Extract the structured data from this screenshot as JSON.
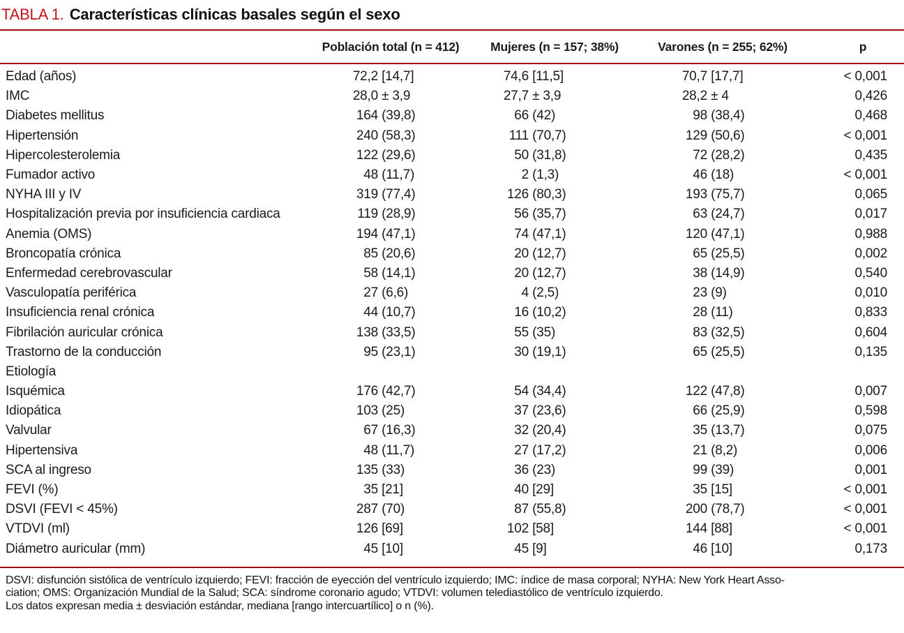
{
  "title": {
    "label": "TABLA 1.",
    "text": "Características clínicas basales según el sexo"
  },
  "chart_data": {
    "type": "table",
    "title": "TABLA 1. Características clínicas basales según el sexo",
    "columns": [
      "",
      "Población total (n = 412)",
      "Mujeres (n = 157; 38%)",
      "Varones (n = 255; 62%)",
      "p"
    ],
    "rows": [
      {
        "label": "Edad (años)",
        "total": "72,2 [14,7]",
        "mujeres": "74,6 [11,5]",
        "varones": "70,7 [17,7]",
        "p": "< 0,001"
      },
      {
        "label": "IMC",
        "total": "28,0 ± 3,9",
        "mujeres": "27,7 ± 3,9",
        "varones": "28,2 ± 4",
        "p": "0,426"
      },
      {
        "label": "Diabetes mellitus",
        "total": "164 (39,8)",
        "mujeres": "66 (42)",
        "varones": "98 (38,4)",
        "p": "0,468"
      },
      {
        "label": "Hipertensión",
        "total": "240 (58,3)",
        "mujeres": "111 (70,7)",
        "varones": "129 (50,6)",
        "p": "< 0,001"
      },
      {
        "label": "Hipercolesterolemia",
        "total": "122 (29,6)",
        "mujeres": "50 (31,8)",
        "varones": "72 (28,2)",
        "p": "0,435"
      },
      {
        "label": "Fumador activo",
        "total": "48 (11,7)",
        "mujeres": "2 (1,3)",
        "varones": "46 (18)",
        "p": "< 0,001"
      },
      {
        "label": "NYHA III y IV",
        "total": "319 (77,4)",
        "mujeres": "126 (80,3)",
        "varones": "193 (75,7)",
        "p": "0,065"
      },
      {
        "label": "Hospitalización previa por insuficiencia cardiaca",
        "total": "119 (28,9)",
        "mujeres": "56 (35,7)",
        "varones": "63 (24,7)",
        "p": "0,017"
      },
      {
        "label": "Anemia (OMS)",
        "total": "194 (47,1)",
        "mujeres": "74 (47,1)",
        "varones": "120 (47,1)",
        "p": "0,988"
      },
      {
        "label": "Broncopatía crónica",
        "total": "85 (20,6)",
        "mujeres": "20 (12,7)",
        "varones": "65 (25,5)",
        "p": "0,002"
      },
      {
        "label": "Enfermedad cerebrovascular",
        "total": "58 (14,1)",
        "mujeres": "20 (12,7)",
        "varones": "38 (14,9)",
        "p": "0,540"
      },
      {
        "label": "Vasculopatía periférica",
        "total": "27 (6,6)",
        "mujeres": "4 (2,5)",
        "varones": "23 (9)",
        "p": "0,010"
      },
      {
        "label": "Insuficiencia renal crónica",
        "total": "44 (10,7)",
        "mujeres": "16 (10,2)",
        "varones": "28 (11)",
        "p": "0,833"
      },
      {
        "label": "Fibrilación auricular crónica",
        "total": "138 (33,5)",
        "mujeres": "55 (35)",
        "varones": "83 (32,5)",
        "p": "0,604"
      },
      {
        "label": "Trastorno de la conducción",
        "total": "95 (23,1)",
        "mujeres": "30 (19,1)",
        "varones": "65 (25,5)",
        "p": "0,135"
      },
      {
        "label": "Etiología",
        "total": "",
        "mujeres": "",
        "varones": "",
        "p": ""
      },
      {
        "label": "Isquémica",
        "total": "176 (42,7)",
        "mujeres": "54 (34,4)",
        "varones": "122 (47,8)",
        "p": "0,007"
      },
      {
        "label": "Idiopática",
        "total": "103 (25)",
        "mujeres": "37 (23,6)",
        "varones": "66 (25,9)",
        "p": "0,598"
      },
      {
        "label": "Valvular",
        "total": "67 (16,3)",
        "mujeres": "32 (20,4)",
        "varones": "35 (13,7)",
        "p": "0,075"
      },
      {
        "label": "Hipertensiva",
        "total": "48 (11,7)",
        "mujeres": "27 (17,2)",
        "varones": "21 (8,2)",
        "p": "0,006"
      },
      {
        "label": "SCA al ingreso",
        "total": "135 (33)",
        "mujeres": "36 (23)",
        "varones": "99 (39)",
        "p": "0,001"
      },
      {
        "label": "FEVI (%)",
        "total": "35 [21]",
        "mujeres": "40 [29]",
        "varones": "35 [15]",
        "p": "< 0,001"
      },
      {
        "label": "DSVI (FEVI < 45%)",
        "total": "287 (70)",
        "mujeres": "87 (55,8)",
        "varones": "200 (78,7)",
        "p": "< 0,001"
      },
      {
        "label": "VTDVI (ml)",
        "total": "126 [69]",
        "mujeres": "102 [58]",
        "varones": "144 [88]",
        "p": "< 0,001"
      },
      {
        "label": "Diámetro auricular (mm)",
        "total": "45 [10]",
        "mujeres": "45 [9]",
        "varones": "46 [10]",
        "p": "0,173"
      }
    ]
  },
  "footnotes": [
    "DSVI: disfunción sistólica de ventrículo izquierdo; FEVI: fracción de eyección del ventrículo izquierdo; IMC: índice de masa corporal; NYHA: New York Heart Asso-",
    "ciation; OMS: Organización Mundial de la Salud; SCA: síndrome coronario agudo; VTDVI: volumen telediastólico de ventrículo izquierdo.",
    "Los datos expresan media ± desviación estándar, mediana [rango intercuartílico] o n (%)."
  ],
  "colors": {
    "title_red": "#c4161d",
    "rule_red": "#9e0e12",
    "text": "#1a1a1a"
  }
}
